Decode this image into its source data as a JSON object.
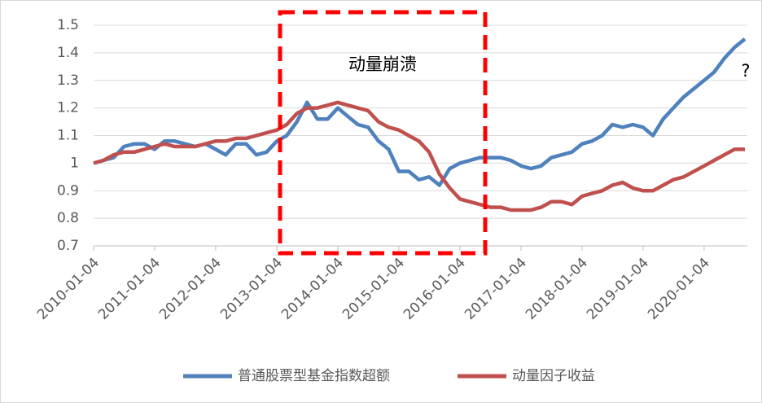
{
  "chart_data": {
    "type": "line",
    "x": [
      "2010-01-04",
      "2010-03-04",
      "2010-05-04",
      "2010-07-04",
      "2010-09-04",
      "2010-11-04",
      "2011-01-04",
      "2011-03-04",
      "2011-05-04",
      "2011-07-04",
      "2011-09-04",
      "2011-11-04",
      "2012-01-04",
      "2012-03-04",
      "2012-05-04",
      "2012-07-04",
      "2012-09-04",
      "2012-11-04",
      "2013-01-04",
      "2013-03-04",
      "2013-05-04",
      "2013-07-04",
      "2013-09-04",
      "2013-11-04",
      "2014-01-04",
      "2014-03-04",
      "2014-05-04",
      "2014-07-04",
      "2014-09-04",
      "2014-11-04",
      "2015-01-04",
      "2015-03-04",
      "2015-05-04",
      "2015-07-04",
      "2015-09-04",
      "2015-11-04",
      "2016-01-04",
      "2016-03-04",
      "2016-05-04",
      "2016-07-04",
      "2016-09-04",
      "2016-11-04",
      "2017-01-04",
      "2017-03-04",
      "2017-05-04",
      "2017-07-04",
      "2017-09-04",
      "2017-11-04",
      "2018-01-04",
      "2018-03-04",
      "2018-05-04",
      "2018-07-04",
      "2018-09-04",
      "2018-11-04",
      "2019-01-04",
      "2019-03-04",
      "2019-05-04",
      "2019-07-04",
      "2019-09-04",
      "2019-11-04",
      "2020-01-04",
      "2020-03-04",
      "2020-05-04",
      "2020-07-04",
      "2020-09-04"
    ],
    "series": [
      {
        "name": "普通股票型基金指数超额",
        "color": "#4f81bd",
        "values": [
          1.0,
          1.01,
          1.02,
          1.06,
          1.07,
          1.07,
          1.05,
          1.08,
          1.08,
          1.07,
          1.06,
          1.07,
          1.05,
          1.03,
          1.07,
          1.07,
          1.03,
          1.04,
          1.08,
          1.1,
          1.15,
          1.22,
          1.16,
          1.16,
          1.2,
          1.17,
          1.14,
          1.13,
          1.08,
          1.05,
          0.97,
          0.97,
          0.94,
          0.95,
          0.92,
          0.98,
          1.0,
          1.01,
          1.02,
          1.02,
          1.02,
          1.01,
          0.99,
          0.98,
          0.99,
          1.02,
          1.03,
          1.04,
          1.07,
          1.08,
          1.1,
          1.14,
          1.13,
          1.14,
          1.13,
          1.1,
          1.16,
          1.2,
          1.24,
          1.27,
          1.3,
          1.33,
          1.38,
          1.42,
          1.45
        ]
      },
      {
        "name": "动量因子收益",
        "color": "#c0504d",
        "values": [
          1.0,
          1.01,
          1.03,
          1.04,
          1.04,
          1.05,
          1.06,
          1.07,
          1.06,
          1.06,
          1.06,
          1.07,
          1.08,
          1.08,
          1.09,
          1.09,
          1.1,
          1.11,
          1.12,
          1.14,
          1.18,
          1.2,
          1.2,
          1.21,
          1.22,
          1.21,
          1.2,
          1.19,
          1.15,
          1.13,
          1.12,
          1.1,
          1.08,
          1.04,
          0.96,
          0.91,
          0.87,
          0.86,
          0.85,
          0.84,
          0.84,
          0.83,
          0.83,
          0.83,
          0.84,
          0.86,
          0.86,
          0.85,
          0.88,
          0.89,
          0.9,
          0.92,
          0.93,
          0.91,
          0.9,
          0.9,
          0.92,
          0.94,
          0.95,
          0.97,
          0.99,
          1.01,
          1.03,
          1.05,
          1.05
        ]
      }
    ],
    "xlim": [
      "2010-01-04",
      "2020-09-04"
    ],
    "xticks": [
      "2010-01-04",
      "2011-01-04",
      "2012-01-04",
      "2013-01-04",
      "2014-01-04",
      "2015-01-04",
      "2016-01-04",
      "2017-01-04",
      "2018-01-04",
      "2019-01-04",
      "2020-01-04"
    ],
    "ylim": [
      0.7,
      1.5
    ],
    "yticks": [
      {
        "value": 0.7,
        "label": "0.7"
      },
      {
        "value": 0.8,
        "label": "0.8"
      },
      {
        "value": 0.9,
        "label": "0.9"
      },
      1,
      {
        "value": 1.1,
        "label": "1.1"
      },
      {
        "value": 1.2,
        "label": "1.2"
      },
      {
        "value": 1.3,
        "label": "1.3"
      },
      {
        "value": 1.4,
        "label": "1.4"
      },
      {
        "value": 1.5,
        "label": "1.5"
      }
    ],
    "grid": true,
    "legend": "bottom",
    "annotations": [
      "动量崩溃",
      "?"
    ]
  }
}
